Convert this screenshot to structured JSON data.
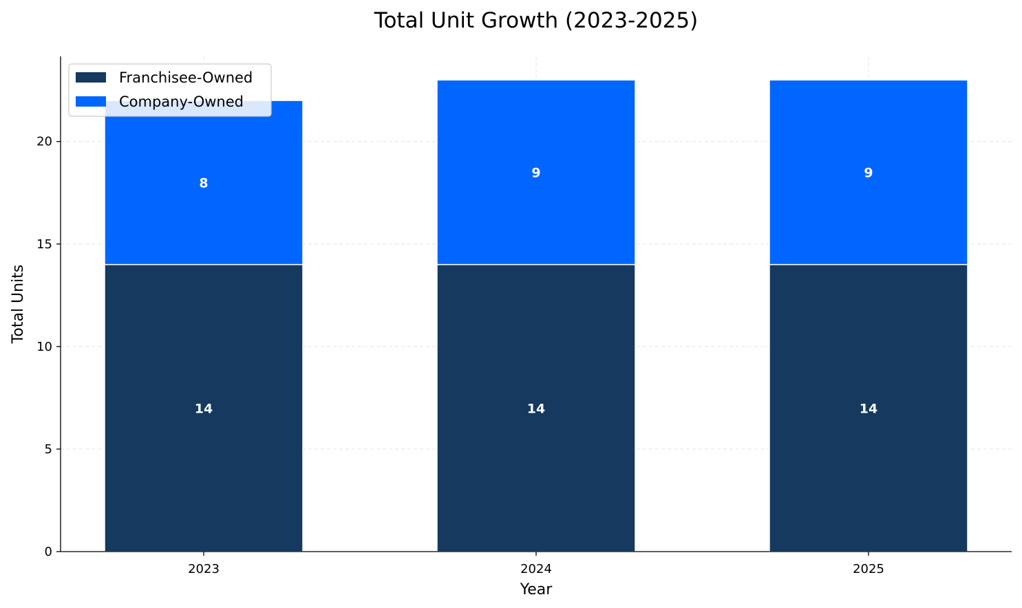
{
  "chart_data": {
    "type": "bar",
    "stacked": true,
    "title": "Total Unit Growth (2023-2025)",
    "xlabel": "Year",
    "ylabel": "Total Units",
    "categories": [
      "2023",
      "2024",
      "2025"
    ],
    "ylim": [
      0,
      24.15
    ],
    "yticks": [
      0,
      5,
      10,
      15,
      20
    ],
    "grid": true,
    "legend_position": "top-left",
    "series": [
      {
        "name": "Franchisee-Owned",
        "values": [
          14,
          14,
          14
        ],
        "color": "#15395f"
      },
      {
        "name": "Company-Owned",
        "values": [
          8,
          9,
          9
        ],
        "color": "#0066ff"
      }
    ]
  }
}
